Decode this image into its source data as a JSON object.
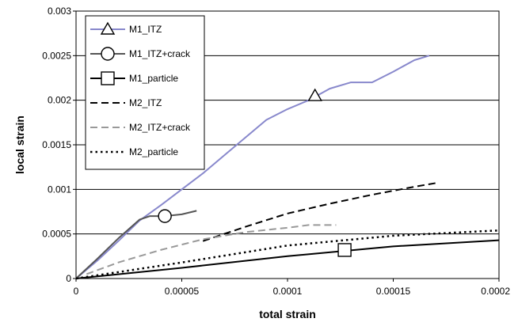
{
  "chart_data": {
    "type": "line",
    "title": "",
    "xlabel": "total strain",
    "ylabel": "local strain",
    "xlim": [
      0,
      0.0002
    ],
    "ylim": [
      0,
      0.003
    ],
    "grid": "horizontal",
    "legend_position": "top-left",
    "x_ticks": [
      "0",
      "0.00005",
      "0.0001",
      "0.00015",
      "0.0002"
    ],
    "y_ticks": [
      "0",
      "0.0005",
      "0.001",
      "0.0015",
      "0.002",
      "0.0025",
      "0.003"
    ],
    "series": [
      {
        "name": "M1_ITZ",
        "color": "#8888cc",
        "dash": "solid",
        "marker": "triangle",
        "marker_point": [
          0.000113,
          0.00205
        ],
        "points": [
          [
            0,
            0
          ],
          [
            1e-05,
            0.0002
          ],
          [
            2e-05,
            0.00042
          ],
          [
            3e-05,
            0.00065
          ],
          [
            4e-05,
            0.00082
          ],
          [
            5e-05,
            0.001
          ],
          [
            6e-05,
            0.00118
          ],
          [
            7e-05,
            0.00138
          ],
          [
            8e-05,
            0.00158
          ],
          [
            9e-05,
            0.00178
          ],
          [
            0.0001,
            0.0019
          ],
          [
            0.00011,
            0.002
          ],
          [
            0.00012,
            0.00213
          ],
          [
            0.00013,
            0.0022
          ],
          [
            0.00014,
            0.0022
          ],
          [
            0.00015,
            0.00232
          ],
          [
            0.00016,
            0.00245
          ],
          [
            0.000167,
            0.0025
          ]
        ]
      },
      {
        "name": "M1_ITZ+crack",
        "color": "#555555",
        "dash": "solid",
        "marker": "circle",
        "marker_point": [
          4.2e-05,
          0.0007
        ],
        "points": [
          [
            0,
            0
          ],
          [
            1e-05,
            0.00022
          ],
          [
            2e-05,
            0.00045
          ],
          [
            3e-05,
            0.00066
          ],
          [
            3.5e-05,
            0.0007
          ],
          [
            4.2e-05,
            0.0007
          ],
          [
            5e-05,
            0.00072
          ],
          [
            5.7e-05,
            0.00076
          ]
        ]
      },
      {
        "name": "M1_particle",
        "color": "#000000",
        "dash": "solid",
        "marker": "square",
        "marker_point": [
          0.000127,
          0.00032
        ],
        "points": [
          [
            0,
            0
          ],
          [
            5e-05,
            0.00012
          ],
          [
            0.0001,
            0.00025
          ],
          [
            0.00015,
            0.00036
          ],
          [
            0.0002,
            0.00043
          ]
        ]
      },
      {
        "name": "M2_ITZ",
        "color": "#000000",
        "dash": "dash",
        "marker": "none",
        "points": [
          [
            6e-05,
            0.00042
          ],
          [
            8e-05,
            0.00058
          ],
          [
            0.0001,
            0.00073
          ],
          [
            0.00012,
            0.00084
          ],
          [
            0.00014,
            0.00094
          ],
          [
            0.00016,
            0.00103
          ],
          [
            0.00017,
            0.00107
          ]
        ]
      },
      {
        "name": "M2_ITZ+crack",
        "color": "#999999",
        "dash": "dash",
        "marker": "none",
        "points": [
          [
            5e-06,
            5e-05
          ],
          [
            2e-05,
            0.00018
          ],
          [
            4e-05,
            0.00032
          ],
          [
            6e-05,
            0.00044
          ],
          [
            8e-05,
            0.00052
          ],
          [
            0.0001,
            0.00057
          ],
          [
            0.00011,
            0.0006
          ],
          [
            0.000123,
            0.0006
          ]
        ]
      },
      {
        "name": "M2_particle",
        "color": "#000000",
        "dash": "dot",
        "marker": "none",
        "points": [
          [
            0,
            0
          ],
          [
            5e-05,
            0.00018
          ],
          [
            0.0001,
            0.00037
          ],
          [
            0.00015,
            0.00048
          ],
          [
            0.0002,
            0.00054
          ]
        ]
      }
    ]
  }
}
